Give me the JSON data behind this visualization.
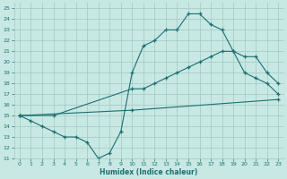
{
  "xlabel": "Humidex (Indice chaleur)",
  "xlim": [
    -0.5,
    23.5
  ],
  "ylim": [
    11,
    25.5
  ],
  "yticks": [
    11,
    12,
    13,
    14,
    15,
    16,
    17,
    18,
    19,
    20,
    21,
    22,
    23,
    24,
    25
  ],
  "xticks": [
    0,
    1,
    2,
    3,
    4,
    5,
    6,
    7,
    8,
    9,
    10,
    11,
    12,
    13,
    14,
    15,
    16,
    17,
    18,
    19,
    20,
    21,
    22,
    23
  ],
  "bg_color": "#c8e8e4",
  "line_color": "#1a7070",
  "grid_color": "#a0c8c4",
  "line1_x": [
    0,
    1,
    2,
    3,
    4,
    5,
    6,
    7,
    8,
    9,
    10,
    11,
    12,
    13,
    14,
    15,
    16,
    17,
    18,
    19,
    20,
    21,
    22,
    23
  ],
  "line1_y": [
    15.0,
    14.5,
    14.0,
    13.5,
    13.0,
    13.0,
    12.5,
    11.0,
    11.5,
    13.5,
    19.0,
    21.5,
    22.0,
    23.0,
    23.0,
    24.5,
    24.5,
    23.5,
    23.0,
    21.0,
    19.0,
    18.5,
    18.0,
    17.0
  ],
  "line2_x": [
    0,
    3,
    10,
    11,
    12,
    13,
    14,
    15,
    16,
    17,
    18,
    19,
    20,
    21,
    22,
    23
  ],
  "line2_y": [
    15.0,
    15.0,
    17.5,
    17.5,
    18.0,
    18.5,
    19.0,
    19.5,
    20.0,
    20.5,
    21.0,
    21.0,
    20.5,
    20.5,
    19.0,
    18.0
  ],
  "line3_x": [
    0,
    10,
    23
  ],
  "line3_y": [
    15.0,
    15.5,
    16.5
  ]
}
